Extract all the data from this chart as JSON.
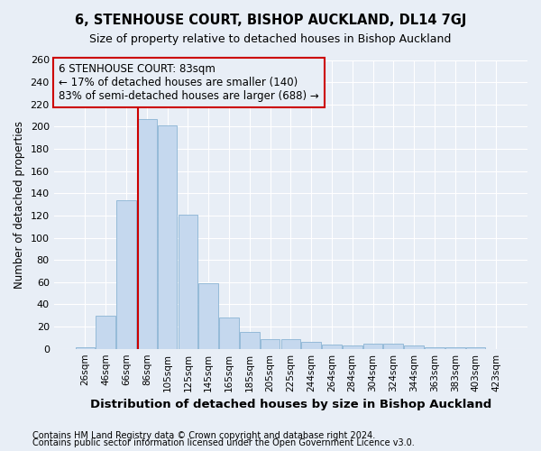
{
  "title1": "6, STENHOUSE COURT, BISHOP AUCKLAND, DL14 7GJ",
  "title2": "Size of property relative to detached houses in Bishop Auckland",
  "xlabel": "Distribution of detached houses by size in Bishop Auckland",
  "ylabel": "Number of detached properties",
  "categories": [
    "26sqm",
    "46sqm",
    "66sqm",
    "86sqm",
    "105sqm",
    "125sqm",
    "145sqm",
    "165sqm",
    "185sqm",
    "205sqm",
    "225sqm",
    "244sqm",
    "264sqm",
    "284sqm",
    "304sqm",
    "324sqm",
    "344sqm",
    "363sqm",
    "383sqm",
    "403sqm",
    "423sqm"
  ],
  "values": [
    1,
    30,
    134,
    207,
    201,
    121,
    59,
    28,
    15,
    9,
    9,
    6,
    4,
    3,
    5,
    5,
    3,
    1,
    1,
    1,
    0
  ],
  "bar_color": "#c5d8ee",
  "bar_edgecolor": "#8ab4d4",
  "property_line_color": "#cc0000",
  "property_line_x": 2.55,
  "annotation_text": "6 STENHOUSE COURT: 83sqm\n← 17% of detached houses are smaller (140)\n83% of semi-detached houses are larger (688) →",
  "annotation_box_edgecolor": "#cc0000",
  "background_color": "#e8eef6",
  "grid_color": "#ffffff",
  "footnote1": "Contains HM Land Registry data © Crown copyright and database right 2024.",
  "footnote2": "Contains public sector information licensed under the Open Government Licence v3.0.",
  "ylim": [
    0,
    260
  ],
  "yticks": [
    0,
    20,
    40,
    60,
    80,
    100,
    120,
    140,
    160,
    180,
    200,
    220,
    240,
    260
  ]
}
